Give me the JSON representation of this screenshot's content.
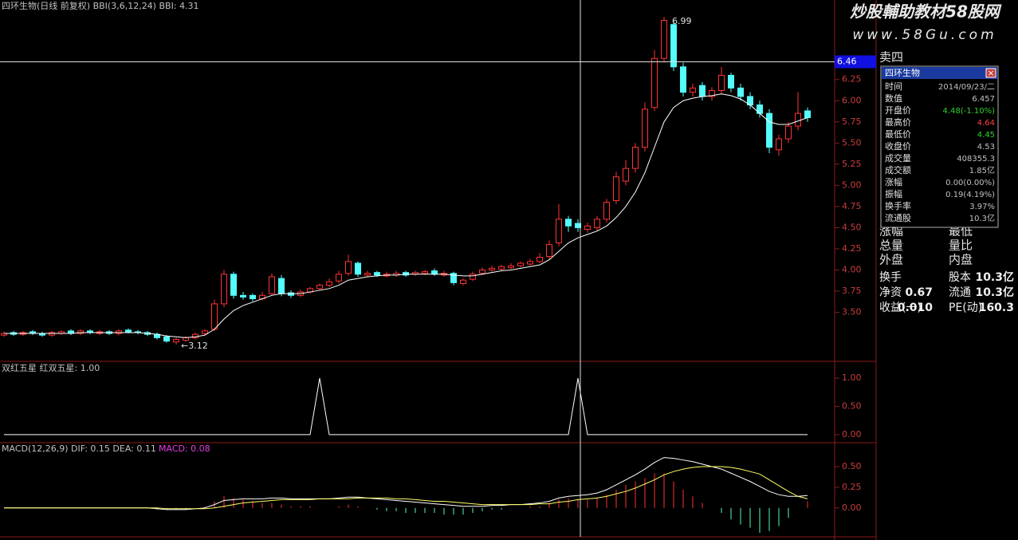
{
  "chart_data": [
    {
      "type": "candlestick",
      "title": "四环生物(日线 前复权) BBI(3,6,12,24) BBI: 4.31",
      "open": [
        3.23,
        3.26,
        3.24,
        3.27,
        3.25,
        3.23,
        3.25,
        3.28,
        3.25,
        3.28,
        3.25,
        3.27,
        3.25,
        3.29,
        3.27,
        3.26,
        3.24,
        3.21,
        3.15,
        3.17,
        3.2,
        3.25,
        3.3,
        3.6,
        3.95,
        3.7,
        3.7,
        3.66,
        3.72,
        3.9,
        3.73,
        3.7,
        3.74,
        3.78,
        3.82,
        3.87,
        3.96,
        4.08,
        3.94,
        3.97,
        3.93,
        3.94,
        3.97,
        3.95,
        3.96,
        3.99,
        3.94,
        3.96,
        3.84,
        3.89,
        3.96,
        4.0,
        4.01,
        4.03,
        4.05,
        4.07,
        4.1,
        4.16,
        4.32,
        4.6,
        4.55,
        4.48,
        4.5,
        4.6,
        4.82,
        5.05,
        5.2,
        5.45,
        5.92,
        6.5,
        6.9,
        6.4,
        6.1,
        6.18,
        6.05,
        6.12,
        6.3,
        6.15,
        6.05,
        5.95,
        5.85,
        5.42,
        5.55,
        5.7,
        5.88
      ],
      "high": [
        3.27,
        3.28,
        3.28,
        3.29,
        3.27,
        3.28,
        3.29,
        3.3,
        3.3,
        3.3,
        3.29,
        3.29,
        3.3,
        3.31,
        3.29,
        3.28,
        3.26,
        3.23,
        3.2,
        3.22,
        3.26,
        3.3,
        3.65,
        4.0,
        3.98,
        3.74,
        3.72,
        3.74,
        3.96,
        3.94,
        3.76,
        3.77,
        3.8,
        3.84,
        3.9,
        3.99,
        4.18,
        4.1,
        3.99,
        3.99,
        3.98,
        3.99,
        3.99,
        3.99,
        4.0,
        4.02,
        3.99,
        3.98,
        3.9,
        3.98,
        4.03,
        4.05,
        4.06,
        4.08,
        4.1,
        4.13,
        4.2,
        4.35,
        4.78,
        4.64,
        4.6,
        4.56,
        4.64,
        4.84,
        5.16,
        5.3,
        5.5,
        5.98,
        6.6,
        6.99,
        6.95,
        6.45,
        6.2,
        6.22,
        6.16,
        6.4,
        6.33,
        6.2,
        6.1,
        6.0,
        5.9,
        5.6,
        5.75,
        6.1,
        5.92
      ],
      "low": [
        3.21,
        3.22,
        3.22,
        3.23,
        3.21,
        3.21,
        3.23,
        3.23,
        3.23,
        3.24,
        3.23,
        3.23,
        3.23,
        3.25,
        3.24,
        3.22,
        3.18,
        3.14,
        3.12,
        3.15,
        3.18,
        3.23,
        3.28,
        3.56,
        3.66,
        3.65,
        3.63,
        3.64,
        3.7,
        3.69,
        3.67,
        3.68,
        3.72,
        3.76,
        3.8,
        3.84,
        3.93,
        3.92,
        3.92,
        3.92,
        3.91,
        3.92,
        3.92,
        3.93,
        3.94,
        3.93,
        3.92,
        3.82,
        3.82,
        3.87,
        3.94,
        3.98,
        3.99,
        4.01,
        4.03,
        4.05,
        4.08,
        4.12,
        4.28,
        4.45,
        4.45,
        4.44,
        4.46,
        4.56,
        4.78,
        5.0,
        5.15,
        5.4,
        5.88,
        6.45,
        6.35,
        6.05,
        6.05,
        6.0,
        6.0,
        6.08,
        6.1,
        6.0,
        5.9,
        5.8,
        5.38,
        5.35,
        5.5,
        5.65,
        5.75
      ],
      "close": [
        3.25,
        3.24,
        3.26,
        3.25,
        3.23,
        3.26,
        3.27,
        3.25,
        3.28,
        3.26,
        3.27,
        3.25,
        3.28,
        3.27,
        3.26,
        3.24,
        3.2,
        3.16,
        3.18,
        3.2,
        3.24,
        3.28,
        3.6,
        3.95,
        3.7,
        3.68,
        3.66,
        3.7,
        3.92,
        3.72,
        3.7,
        3.74,
        3.78,
        3.82,
        3.86,
        3.95,
        4.1,
        3.95,
        3.96,
        3.94,
        3.95,
        3.96,
        3.94,
        3.97,
        3.98,
        3.95,
        3.96,
        3.85,
        3.88,
        3.95,
        4.0,
        4.02,
        4.04,
        4.05,
        4.08,
        4.1,
        4.15,
        4.3,
        4.6,
        4.52,
        4.5,
        4.52,
        4.6,
        4.8,
        5.1,
        5.2,
        5.45,
        5.9,
        6.5,
        6.95,
        6.4,
        6.1,
        6.15,
        6.05,
        6.12,
        6.3,
        6.15,
        6.05,
        5.95,
        5.85,
        5.45,
        5.55,
        5.7,
        5.85,
        5.8
      ],
      "series": [
        {
          "name": "BBI",
          "color": "#ffffff",
          "values": [
            3.25,
            3.25,
            3.25,
            3.25,
            3.25,
            3.25,
            3.25,
            3.25,
            3.26,
            3.26,
            3.26,
            3.26,
            3.26,
            3.26,
            3.26,
            3.25,
            3.24,
            3.22,
            3.21,
            3.2,
            3.21,
            3.23,
            3.3,
            3.42,
            3.52,
            3.58,
            3.62,
            3.66,
            3.7,
            3.72,
            3.72,
            3.72,
            3.74,
            3.76,
            3.78,
            3.82,
            3.88,
            3.9,
            3.92,
            3.93,
            3.94,
            3.94,
            3.95,
            3.95,
            3.95,
            3.95,
            3.95,
            3.94,
            3.93,
            3.93,
            3.95,
            3.97,
            3.99,
            4.0,
            4.02,
            4.04,
            4.06,
            4.12,
            4.22,
            4.32,
            4.38,
            4.42,
            4.46,
            4.52,
            4.62,
            4.75,
            4.92,
            5.15,
            5.45,
            5.75,
            5.92,
            6.0,
            6.03,
            6.05,
            6.06,
            6.08,
            6.06,
            6.02,
            5.95,
            5.85,
            5.75,
            5.72,
            5.72,
            5.76,
            5.8
          ]
        }
      ],
      "up_color": "#ff3232",
      "down_color": "#54fcfc",
      "ylim": [
        2.93,
        7.19
      ],
      "yticks": [
        {
          "value": 3.5,
          "label": "3.50"
        },
        3.75,
        {
          "value": 4,
          "label": "4.00"
        },
        4.25,
        {
          "value": 4.5,
          "label": "4.50"
        },
        4.75,
        {
          "value": 5,
          "label": "5.00"
        },
        5.25,
        {
          "value": 5.5,
          "label": "5.50"
        },
        5.75,
        {
          "value": 6,
          "label": "6.00"
        },
        6.25
      ],
      "annotations": {
        "max_label": "6.99",
        "min_label": "←3.12"
      },
      "crosshair_price": 6.46
    },
    {
      "type": "line",
      "title": "双红五星 红双五星: 1.00",
      "series": [
        {
          "name": "红双五星",
          "color": "#ffffff",
          "values": [
            0,
            0,
            0,
            0,
            0,
            0,
            0,
            0,
            0,
            0,
            0,
            0,
            0,
            0,
            0,
            0,
            0,
            0,
            0,
            0,
            0,
            0,
            0,
            0,
            0,
            0,
            0,
            0,
            0,
            0,
            0,
            0,
            0,
            1,
            0,
            0,
            0,
            0,
            0,
            0,
            0,
            0,
            0,
            0,
            0,
            0,
            0,
            0,
            0,
            0,
            0,
            0,
            0,
            0,
            0,
            0,
            0,
            0,
            0,
            0,
            1,
            0,
            0,
            0,
            0,
            0,
            0,
            0,
            0,
            0,
            0,
            0,
            0,
            0,
            0,
            0,
            0,
            0,
            0,
            0,
            0,
            0,
            0,
            0,
            0
          ]
        }
      ],
      "ylim": [
        -0.1,
        1.27
      ],
      "yticks": [
        {
          "value": 0,
          "label": "0.00"
        },
        {
          "value": 0.5,
          "label": "0.50"
        },
        {
          "value": 1,
          "label": "1.00"
        }
      ]
    },
    {
      "type": "macd",
      "title": "MACD(12,26,9) DIF: 0.15 DEA: 0.11",
      "macd_title": "MACD: 0.08",
      "series": [
        {
          "name": "DIF",
          "color": "#ffffff",
          "values": [
            0,
            0,
            0,
            0,
            0,
            0,
            0,
            0,
            0,
            0,
            0,
            0,
            0,
            0,
            0,
            0,
            -0.01,
            -0.02,
            -0.02,
            -0.02,
            -0.01,
            0,
            0.04,
            0.09,
            0.1,
            0.11,
            0.11,
            0.11,
            0.12,
            0.12,
            0.11,
            0.11,
            0.11,
            0.11,
            0.11,
            0.12,
            0.13,
            0.13,
            0.12,
            0.11,
            0.1,
            0.09,
            0.08,
            0.07,
            0.06,
            0.05,
            0.04,
            0.03,
            0.02,
            0.02,
            0.02,
            0.03,
            0.03,
            0.04,
            0.04,
            0.05,
            0.06,
            0.08,
            0.12,
            0.14,
            0.15,
            0.16,
            0.18,
            0.22,
            0.28,
            0.34,
            0.4,
            0.47,
            0.55,
            0.61,
            0.6,
            0.58,
            0.56,
            0.53,
            0.5,
            0.47,
            0.42,
            0.37,
            0.32,
            0.26,
            0.2,
            0.16,
            0.14,
            0.14,
            0.15
          ]
        },
        {
          "name": "DEA",
          "color": "#ffff66",
          "values": [
            0,
            0,
            0,
            0,
            0,
            0,
            0,
            0,
            0,
            0,
            0,
            0,
            0,
            0,
            0,
            0,
            0,
            -0.01,
            -0.01,
            -0.01,
            -0.01,
            -0.01,
            0,
            0.02,
            0.04,
            0.06,
            0.07,
            0.08,
            0.09,
            0.1,
            0.1,
            0.1,
            0.1,
            0.11,
            0.11,
            0.11,
            0.11,
            0.12,
            0.12,
            0.12,
            0.12,
            0.11,
            0.11,
            0.1,
            0.09,
            0.08,
            0.08,
            0.07,
            0.06,
            0.05,
            0.04,
            0.04,
            0.04,
            0.04,
            0.04,
            0.04,
            0.05,
            0.05,
            0.07,
            0.08,
            0.1,
            0.11,
            0.12,
            0.14,
            0.17,
            0.2,
            0.24,
            0.29,
            0.34,
            0.4,
            0.44,
            0.47,
            0.49,
            0.5,
            0.5,
            0.5,
            0.49,
            0.47,
            0.44,
            0.41,
            0.34,
            0.27,
            0.2,
            0.14,
            0.11
          ]
        }
      ],
      "bars": [
        0,
        0,
        0,
        0,
        0,
        0,
        0,
        0,
        0,
        0,
        0,
        0,
        0,
        0,
        0,
        0,
        -0.02,
        -0.02,
        -0.02,
        -0.02,
        0,
        0.02,
        0.08,
        0.14,
        0.12,
        0.1,
        0.08,
        0.06,
        0.06,
        0.04,
        0.02,
        0.02,
        0.02,
        0,
        0,
        0.02,
        0.04,
        0.02,
        0,
        -0.02,
        -0.04,
        -0.04,
        -0.06,
        -0.06,
        -0.06,
        -0.06,
        -0.08,
        -0.08,
        -0.08,
        -0.06,
        -0.04,
        -0.02,
        -0.02,
        0,
        0,
        0.02,
        0.02,
        0.06,
        0.1,
        0.12,
        0.1,
        0.1,
        0.12,
        0.16,
        0.22,
        0.28,
        0.32,
        0.36,
        0.42,
        0.42,
        0.32,
        0.22,
        0.14,
        0.06,
        0,
        -0.06,
        -0.14,
        -0.2,
        -0.24,
        -0.3,
        -0.28,
        -0.22,
        -0.12,
        0,
        0.08
      ],
      "up_color": "#ff3232",
      "down_color": "#54fcb0",
      "ylim": [
        -0.34,
        0.77
      ],
      "yticks": [
        {
          "value": 0,
          "label": "0.00"
        },
        {
          "value": 0.25,
          "label": "0.25"
        },
        {
          "value": 0.5,
          "label": "0.50"
        }
      ]
    }
  ],
  "watermark": {
    "title": "炒股輔助教材58股网",
    "url": "www.58Gu.com"
  },
  "quote_panel": {
    "rows": [
      [
        "卖四",
        ""
      ],
      [
        "涨幅",
        "最低"
      ],
      [
        "总量",
        "量比"
      ],
      [
        "外盘",
        "内盘"
      ]
    ],
    "stats": [
      [
        "换手",
        "",
        "股本",
        "10.3亿"
      ],
      [
        "净资",
        "0.67",
        "流通",
        "10.3亿"
      ],
      [
        "收益(一)",
        "0.010",
        "PE(动)",
        "160.3"
      ]
    ]
  },
  "popup": {
    "title": "四环生物",
    "close": "×",
    "rows": [
      [
        "时间",
        "2014/09/23/二"
      ],
      [
        "数值",
        "6.457"
      ],
      [
        "开盘价",
        "4.48(-1.10%)"
      ],
      [
        "最高价",
        "4.64"
      ],
      [
        "最低价",
        "4.45"
      ],
      [
        "收盘价",
        "4.53"
      ],
      [
        "成交量",
        "408355.3"
      ],
      [
        "成交额",
        "1.85亿"
      ],
      [
        "涨幅",
        "0.00(0.00%)"
      ],
      [
        "振幅",
        "0.19(4.19%)"
      ],
      [
        "换手率",
        "3.97%"
      ],
      [
        "流通股",
        "10.3亿"
      ]
    ]
  }
}
